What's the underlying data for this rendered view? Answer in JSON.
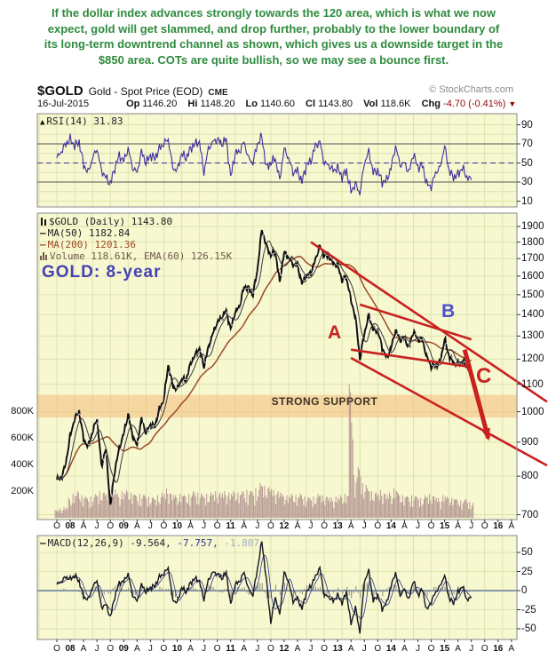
{
  "annotation": {
    "text": "If the dollar index advances strongly towards the 120 area, which is what we now expect, gold will get slammed, and drop further, probably to the lower boundary of its long-term downtrend channel as shown, which gives us a downside target in the $850 area. COTs are quite bullish, so we may see a bounce first."
  },
  "header": {
    "symbol": "$GOLD",
    "name": "Gold - Spot Price (EOD)",
    "exchange": "CME",
    "copyright": "© StockCharts.com",
    "date": "16-Jul-2015",
    "quote": {
      "op_label": "Op",
      "op": "1146.20",
      "hi_label": "Hi",
      "hi": "1148.20",
      "lo_label": "Lo",
      "lo": "1140.60",
      "cl_label": "Cl",
      "cl": "1143.80",
      "vol_label": "Vol",
      "vol": "118.6K",
      "chg_label": "Chg",
      "chg": "-4.70 (-0.41%)",
      "chg_arrow": "▼"
    }
  },
  "rsi": {
    "legend": "RSI(14) 31.83"
  },
  "main": {
    "legend_price": "$GOLD (Daily) 1143.80",
    "legend_ma50": "MA(50) 1182.84",
    "legend_ma200": "MA(200) 1201.36",
    "legend_volume": "Volume 118.61K, EMA(60) 126.15K",
    "watermark": "GOLD: 8-year",
    "support_label": "STRONG SUPPORT",
    "label_a": "A",
    "label_b": "B",
    "label_c": "C"
  },
  "macd": {
    "legend": "MACD(12,26,9)",
    "v1": "-9.564,",
    "v2": "-7.757,",
    "v3": "-1.807"
  },
  "xaxis": [
    "O",
    "08",
    "A",
    "J",
    "O",
    "09",
    "A",
    "J",
    "O",
    "10",
    "A",
    "J",
    "O",
    "11",
    "A",
    "J",
    "O",
    "12",
    "A",
    "J",
    "O",
    "13",
    "A",
    "J",
    "O",
    "14",
    "A",
    "J",
    "O",
    "15",
    "A",
    "J",
    "O",
    "16",
    "A"
  ],
  "colors": {
    "annotation_green": "#2f8b3e",
    "panel_bg": "#f7f7d0",
    "grid": "#dce4ae",
    "panel_border": "#8a8a8a",
    "rsi_line": "#3d2f9f",
    "price_line": "#111111",
    "ma50": "#3a3a3a",
    "ma200": "#9c4a28",
    "volume_bar": "#b08f8f",
    "support_band": "#f5b873",
    "red_annotation": "#c92020",
    "macd_line": "#151520",
    "macd_signal": "#2b3a8c",
    "macd_zero": "#8899aa",
    "neg_change": "#990000"
  },
  "chart_data": [
    {
      "type": "line",
      "name": "RSI(14)",
      "panel": "rsi",
      "ylim": [
        0,
        100
      ],
      "yticks": [
        90,
        70,
        50,
        30,
        10
      ],
      "hlines": [
        70,
        50,
        30
      ],
      "x_start": "Oct-2007",
      "x_step_months": 1,
      "last_value": 31.83,
      "values": [
        55,
        62,
        70,
        75,
        68,
        72,
        48,
        40,
        55,
        65,
        42,
        35,
        28,
        45,
        58,
        52,
        65,
        45,
        40,
        62,
        50,
        58,
        55,
        65,
        70,
        75,
        45,
        42,
        60,
        55,
        65,
        70,
        72,
        40,
        65,
        72,
        75,
        70,
        75,
        35,
        60,
        62,
        72,
        55,
        50,
        70,
        78,
        45,
        50,
        55,
        32,
        65,
        55,
        40,
        42,
        30,
        48,
        52,
        68,
        72,
        50,
        48,
        42,
        45,
        35,
        42,
        20,
        28,
        18,
        50,
        62,
        40,
        42,
        30,
        32,
        45,
        68,
        48,
        50,
        40,
        60,
        45,
        48,
        28,
        25,
        40,
        45,
        68,
        42,
        35,
        38,
        45,
        35,
        32
      ]
    },
    {
      "type": "line",
      "name": "$GOLD monthly close",
      "panel": "main",
      "scale": "log",
      "ylim": [
        660,
        1980
      ],
      "yticks": [
        1900,
        1800,
        1700,
        1600,
        1500,
        1400,
        1300,
        1200,
        1100,
        1000,
        900,
        800,
        700
      ],
      "x_start": "Oct-2007",
      "x_step_months": 1,
      "last_value": 1143.8,
      "ma50_last": 1182.84,
      "ma200_last": 1201.36,
      "values": [
        790,
        795,
        833,
        920,
        975,
        1000,
        910,
        885,
        930,
        978,
        830,
        880,
        720,
        815,
        880,
        925,
        990,
        920,
        890,
        975,
        930,
        955,
        950,
        1008,
        1040,
        1175,
        1095,
        1080,
        1118,
        1115,
        1180,
        1215,
        1244,
        1170,
        1248,
        1310,
        1360,
        1385,
        1420,
        1330,
        1410,
        1438,
        1540,
        1535,
        1500,
        1630,
        1880,
        1780,
        1720,
        1745,
        1565,
        1735,
        1710,
        1668,
        1662,
        1560,
        1600,
        1615,
        1690,
        1775,
        1720,
        1715,
        1675,
        1660,
        1580,
        1595,
        1470,
        1390,
        1200,
        1310,
        1395,
        1330,
        1325,
        1250,
        1205,
        1245,
        1325,
        1285,
        1290,
        1250,
        1320,
        1285,
        1285,
        1210,
        1170,
        1175,
        1185,
        1285,
        1215,
        1185,
        1180,
        1190,
        1172,
        1144
      ],
      "support_band_price": [
        980,
        1060
      ],
      "trendlines": [
        {
          "from": [
            57,
            1800
          ],
          "to": [
            110,
            1035
          ]
        },
        {
          "from": [
            68,
            1450
          ],
          "to": [
            93,
            1285
          ]
        },
        {
          "from": [
            66,
            1240
          ],
          "to": [
            92,
            1170
          ]
        },
        {
          "from": [
            66,
            1205
          ],
          "to": [
            110,
            830
          ]
        }
      ],
      "arrow": {
        "from": [
          91.5,
          1240
        ],
        "to": [
          96.8,
          912
        ]
      }
    },
    {
      "type": "bar",
      "name": "Volume (K)",
      "panel": "main",
      "yticks_left": [
        "800K",
        "600K",
        "400K",
        "200K"
      ],
      "last_value": "118.61K",
      "values_k": [
        60,
        70,
        80,
        150,
        180,
        200,
        170,
        150,
        160,
        180,
        200,
        190,
        260,
        220,
        180,
        200,
        210,
        190,
        170,
        180,
        170,
        160,
        150,
        170,
        190,
        220,
        180,
        170,
        180,
        170,
        180,
        200,
        190,
        170,
        180,
        190,
        200,
        190,
        200,
        190,
        200,
        190,
        200,
        210,
        200,
        220,
        260,
        240,
        230,
        210,
        200,
        180,
        170,
        180,
        170,
        180,
        160,
        150,
        160,
        180,
        170,
        160,
        150,
        160,
        170,
        180,
        1000,
        320,
        380,
        260,
        220,
        200,
        190,
        210,
        180,
        190,
        220,
        180,
        170,
        160,
        170,
        160,
        150,
        170,
        180,
        160,
        150,
        170,
        160,
        150,
        140,
        130,
        140,
        119
      ]
    },
    {
      "type": "line",
      "name": "MACD(12,26,9)",
      "panel": "macd",
      "ylim": [
        -65,
        72
      ],
      "yticks": [
        50,
        25,
        0,
        -25,
        -50
      ],
      "last_values": [
        -9.564,
        -7.757,
        -1.807
      ],
      "values": [
        8,
        12,
        18,
        15,
        20,
        12,
        -8,
        -12,
        4,
        14,
        -22,
        -18,
        -35,
        -8,
        10,
        12,
        22,
        -6,
        -14,
        8,
        -2,
        4,
        6,
        18,
        22,
        30,
        -12,
        -16,
        4,
        -2,
        10,
        16,
        12,
        -12,
        14,
        24,
        22,
        16,
        24,
        -18,
        8,
        12,
        24,
        2,
        -6,
        28,
        65,
        15,
        -42,
        -8,
        -32,
        24,
        12,
        -14,
        -10,
        -24,
        -2,
        6,
        18,
        30,
        -6,
        -8,
        -14,
        -6,
        -16,
        -2,
        -44,
        -22,
        -55,
        12,
        26,
        -14,
        -6,
        -24,
        -16,
        6,
        24,
        -6,
        2,
        -12,
        14,
        -6,
        2,
        -26,
        -14,
        -2,
        6,
        20,
        -10,
        -16,
        -2,
        6,
        -12,
        -9.6
      ]
    }
  ]
}
